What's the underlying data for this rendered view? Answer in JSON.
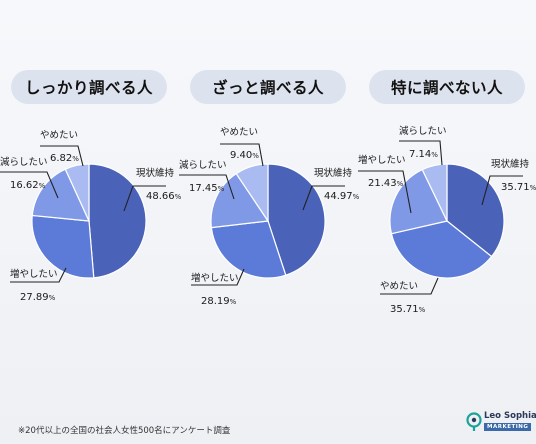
{
  "chart_data": [
    {
      "type": "pie",
      "title": "しっかり調べる人",
      "slices": [
        {
          "label": "現状維持",
          "value": 48.66,
          "display": "48.66",
          "color": "#4a62b8"
        },
        {
          "label": "増やしたい",
          "value": 27.89,
          "display": "27.89",
          "color": "#5c7ad8"
        },
        {
          "label": "減らしたい",
          "value": 16.62,
          "display": "16.62",
          "color": "#7f99e6"
        },
        {
          "label": "やめたい",
          "value": 6.82,
          "display": "6.82",
          "color": "#a9bbf0"
        }
      ]
    },
    {
      "type": "pie",
      "title": "ざっと調べる人",
      "slices": [
        {
          "label": "現状維持",
          "value": 44.97,
          "display": "44.97",
          "color": "#4a62b8"
        },
        {
          "label": "増やしたい",
          "value": 28.19,
          "display": "28.19",
          "color": "#5c7ad8"
        },
        {
          "label": "減らしたい",
          "value": 17.45,
          "display": "17.45",
          "color": "#7f99e6"
        },
        {
          "label": "やめたい",
          "value": 9.4,
          "display": "9.40",
          "color": "#a9bbf0"
        }
      ]
    },
    {
      "type": "pie",
      "title": "特に調べない人",
      "slices": [
        {
          "label": "現状維持",
          "value": 35.71,
          "display": "35.71",
          "color": "#4a62b8"
        },
        {
          "label": "やめたい",
          "value": 35.71,
          "display": "35.71",
          "color": "#5c7ad8"
        },
        {
          "label": "増やしたい",
          "value": 21.43,
          "display": "21.43",
          "color": "#7f99e6"
        },
        {
          "label": "減らしたい",
          "value": 7.14,
          "display": "7.14",
          "color": "#a9bbf0"
        }
      ]
    }
  ],
  "percent_unit": "%",
  "footnote": "※20代以上の全国の社会人女性500名にアンケート調査",
  "brand": {
    "name": "Leo Sophia",
    "sub": "MARKETING"
  }
}
